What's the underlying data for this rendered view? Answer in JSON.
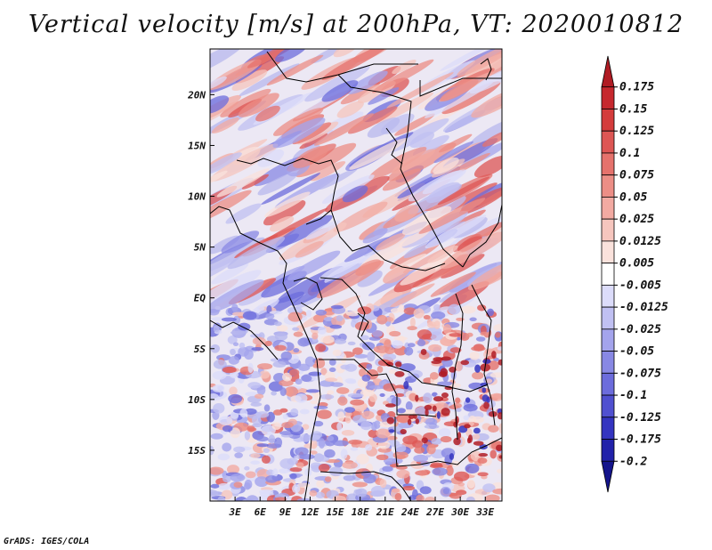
{
  "title": "Vertical velocity [m/s] at 200hPa, VT: 2020010812",
  "credit": "GrADS: IGES/COLA",
  "map": {
    "field": "Vertical velocity",
    "units": "m/s",
    "level": "200hPa",
    "valid_time": "2020010812",
    "lat_range": [
      -20,
      24.5
    ],
    "lon_range": [
      0,
      35
    ],
    "lat_ticks": [
      {
        "value": 20,
        "label": "20N"
      },
      {
        "value": 15,
        "label": "15N"
      },
      {
        "value": 10,
        "label": "10N"
      },
      {
        "value": 5,
        "label": "5N"
      },
      {
        "value": 0,
        "label": "EQ"
      },
      {
        "value": -5,
        "label": "5S"
      },
      {
        "value": -10,
        "label": "10S"
      },
      {
        "value": -15,
        "label": "15S"
      }
    ],
    "lon_ticks": [
      {
        "value": 3,
        "label": "3E"
      },
      {
        "value": 6,
        "label": "6E"
      },
      {
        "value": 9,
        "label": "9E"
      },
      {
        "value": 12,
        "label": "12E"
      },
      {
        "value": 15,
        "label": "15E"
      },
      {
        "value": 18,
        "label": "18E"
      },
      {
        "value": 21,
        "label": "21E"
      },
      {
        "value": 24,
        "label": "24E"
      },
      {
        "value": 27,
        "label": "27E"
      },
      {
        "value": 30,
        "label": "30E"
      },
      {
        "value": 33,
        "label": "33E"
      }
    ]
  },
  "colorbar": {
    "labels": [
      "0.175",
      "0.15",
      "0.125",
      "0.1",
      "0.075",
      "0.05",
      "0.025",
      "0.0125",
      "0.005",
      "-0.005",
      "-0.0125",
      "-0.025",
      "-0.05",
      "-0.075",
      "-0.1",
      "-0.125",
      "-0.175",
      "-0.2"
    ],
    "colors": [
      "#b01c24",
      "#c6282e",
      "#d43c3c",
      "#dd5654",
      "#e5726c",
      "#ec8e86",
      "#f2aaa2",
      "#f6c6be",
      "#fae2dc",
      "#ffffff",
      "#dcdcfa",
      "#c0c0f2",
      "#a4a4ec",
      "#8888e4",
      "#6c6cdc",
      "#5050d0",
      "#3434c0",
      "#2222aa",
      "#14148c"
    ]
  }
}
